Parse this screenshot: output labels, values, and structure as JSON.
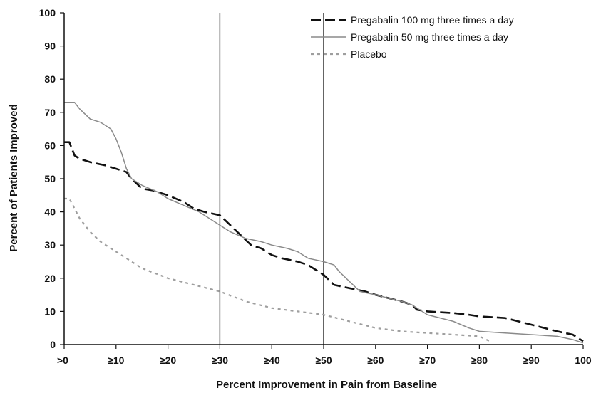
{
  "chart_data": {
    "type": "line",
    "title": "",
    "xlabel": "Percent Improvement in Pain from Baseline",
    "ylabel": "Percent of Patients Improved",
    "xlim": [
      0,
      100
    ],
    "ylim": [
      0,
      100
    ],
    "x_ticks": [
      0,
      10,
      20,
      30,
      40,
      50,
      60,
      70,
      80,
      90,
      100
    ],
    "x_tick_labels": [
      ">0",
      "≥10",
      "≥20",
      "≥30",
      "≥40",
      "≥50",
      "≥60",
      "≥70",
      "≥80",
      "≥90",
      "100"
    ],
    "y_ticks": [
      0,
      10,
      20,
      30,
      40,
      50,
      60,
      70,
      80,
      90,
      100
    ],
    "y_tick_labels": [
      "0",
      "10",
      "20",
      "30",
      "40",
      "50",
      "60",
      "70",
      "80",
      "90",
      "100"
    ],
    "reference_lines_x": [
      30,
      50
    ],
    "grid": false,
    "legend_position": "top-right",
    "series": [
      {
        "name": "Pregabalin 100 mg three times a day",
        "style": "dashed",
        "color": "#111111",
        "x": [
          0,
          1,
          2,
          3,
          5,
          8,
          10,
          12,
          13,
          15,
          17,
          20,
          23,
          25,
          27,
          30,
          32,
          34,
          36,
          38,
          40,
          42,
          45,
          47,
          48,
          50,
          52,
          55,
          58,
          60,
          65,
          67,
          68,
          70,
          75,
          78,
          80,
          85,
          90,
          95,
          98,
          100
        ],
        "y": [
          61,
          61,
          57,
          56,
          55,
          54,
          53,
          52,
          50,
          47,
          46.5,
          45,
          43,
          41,
          40,
          39,
          36,
          33,
          30,
          29,
          27,
          26,
          25,
          24,
          23,
          21,
          18,
          17,
          16,
          15,
          13,
          12,
          10.5,
          10,
          9.5,
          9,
          8.5,
          8,
          6,
          4,
          3,
          1
        ]
      },
      {
        "name": "Pregabalin 50 mg three times a day",
        "style": "solid",
        "color": "#8a8a8a",
        "x": [
          0,
          2,
          3,
          5,
          7,
          9,
          10,
          11,
          12,
          13,
          15,
          18,
          20,
          23,
          26,
          28,
          30,
          32,
          35,
          38,
          40,
          43,
          45,
          47,
          50,
          52,
          53,
          55,
          57,
          60,
          65,
          67,
          70,
          75,
          78,
          80,
          85,
          90,
          95,
          98,
          100
        ],
        "y": [
          73,
          73,
          71,
          68,
          67,
          65,
          62,
          58,
          53,
          50,
          48,
          46,
          44,
          42,
          40,
          38,
          36,
          34,
          32,
          31,
          30,
          29,
          28,
          26,
          25,
          24,
          22,
          19,
          16,
          15,
          13,
          12,
          9,
          7,
          5,
          4,
          3.5,
          3,
          2.5,
          1.5,
          0.5
        ]
      },
      {
        "name": "Placebo",
        "style": "dotted",
        "color": "#9e9e9e",
        "x": [
          0,
          1,
          2,
          3,
          5,
          7,
          10,
          12,
          15,
          20,
          25,
          30,
          35,
          40,
          45,
          50,
          55,
          60,
          65,
          70,
          75,
          80,
          82
        ],
        "y": [
          44,
          44,
          41,
          38,
          34,
          31,
          28,
          26,
          23,
          20,
          18,
          16,
          13,
          11,
          10,
          9,
          7,
          5,
          4,
          3.5,
          3,
          2.5,
          1
        ]
      }
    ]
  }
}
